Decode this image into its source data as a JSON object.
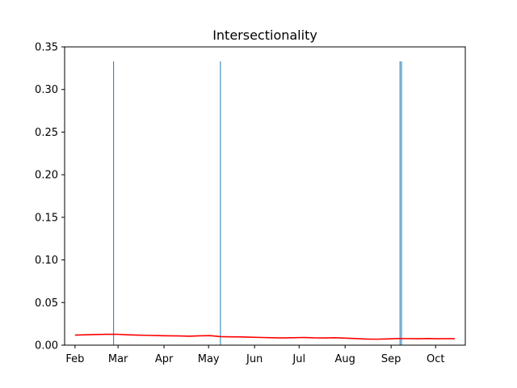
{
  "chart_data": {
    "type": "bar",
    "title": "Intersectionality",
    "xlabel": "",
    "ylabel": "",
    "ylim": [
      0,
      0.35
    ],
    "xlim": [
      "2020-01-25",
      "2020-10-21"
    ],
    "grid": false,
    "legend": null,
    "x_ticks": [
      {
        "date": "2020-02-01",
        "label": "Feb"
      },
      {
        "date": "2020-03-01",
        "label": "Mar"
      },
      {
        "date": "2020-04-01",
        "label": "Apr"
      },
      {
        "date": "2020-05-01",
        "label": "May"
      },
      {
        "date": "2020-06-01",
        "label": "Jun"
      },
      {
        "date": "2020-07-01",
        "label": "Jul"
      },
      {
        "date": "2020-08-01",
        "label": "Aug"
      },
      {
        "date": "2020-09-01",
        "label": "Sep"
      },
      {
        "date": "2020-10-01",
        "label": "Oct"
      }
    ],
    "y_ticks": [
      {
        "value": 0.0,
        "label": "0.00"
      },
      {
        "value": 0.05,
        "label": "0.05"
      },
      {
        "value": 0.1,
        "label": "0.10"
      },
      {
        "value": 0.15,
        "label": "0.15"
      },
      {
        "value": 0.2,
        "label": "0.20"
      },
      {
        "value": 0.25,
        "label": "0.25"
      },
      {
        "value": 0.3,
        "label": "0.30"
      },
      {
        "value": 0.35,
        "label": "0.35"
      }
    ],
    "series": [
      {
        "type": "bar",
        "color": "#1f77b4",
        "points": [
          {
            "x": "2020-02-27",
            "y": 0.333
          },
          {
            "x": "2020-05-09",
            "y": 0.333
          },
          {
            "x": "2020-09-07",
            "y": 0.333
          },
          {
            "x": "2020-09-08",
            "y": 0.333
          }
        ]
      },
      {
        "type": "line",
        "color": "#ff0000",
        "points": [
          {
            "x": "2020-02-01",
            "y": 0.0118
          },
          {
            "x": "2020-02-08",
            "y": 0.0122
          },
          {
            "x": "2020-02-15",
            "y": 0.0125
          },
          {
            "x": "2020-02-22",
            "y": 0.0127
          },
          {
            "x": "2020-02-29",
            "y": 0.0128
          },
          {
            "x": "2020-03-07",
            "y": 0.0122
          },
          {
            "x": "2020-03-14",
            "y": 0.0118
          },
          {
            "x": "2020-03-21",
            "y": 0.0115
          },
          {
            "x": "2020-03-28",
            "y": 0.0112
          },
          {
            "x": "2020-04-04",
            "y": 0.011
          },
          {
            "x": "2020-04-11",
            "y": 0.0108
          },
          {
            "x": "2020-04-18",
            "y": 0.0105
          },
          {
            "x": "2020-04-25",
            "y": 0.011
          },
          {
            "x": "2020-05-02",
            "y": 0.0112
          },
          {
            "x": "2020-05-09",
            "y": 0.01
          },
          {
            "x": "2020-05-16",
            "y": 0.0098
          },
          {
            "x": "2020-05-23",
            "y": 0.0097
          },
          {
            "x": "2020-05-30",
            "y": 0.0093
          },
          {
            "x": "2020-06-06",
            "y": 0.009
          },
          {
            "x": "2020-06-13",
            "y": 0.0087
          },
          {
            "x": "2020-06-20",
            "y": 0.0085
          },
          {
            "x": "2020-06-27",
            "y": 0.0087
          },
          {
            "x": "2020-07-04",
            "y": 0.009
          },
          {
            "x": "2020-07-11",
            "y": 0.0086
          },
          {
            "x": "2020-07-18",
            "y": 0.0085
          },
          {
            "x": "2020-07-25",
            "y": 0.0087
          },
          {
            "x": "2020-08-01",
            "y": 0.0082
          },
          {
            "x": "2020-08-08",
            "y": 0.0078
          },
          {
            "x": "2020-08-15",
            "y": 0.0072
          },
          {
            "x": "2020-08-22",
            "y": 0.007
          },
          {
            "x": "2020-08-29",
            "y": 0.0073
          },
          {
            "x": "2020-09-05",
            "y": 0.0078
          },
          {
            "x": "2020-09-12",
            "y": 0.0077
          },
          {
            "x": "2020-09-19",
            "y": 0.0075
          },
          {
            "x": "2020-09-26",
            "y": 0.0078
          },
          {
            "x": "2020-10-03",
            "y": 0.0075
          },
          {
            "x": "2020-10-10",
            "y": 0.0077
          },
          {
            "x": "2020-10-14",
            "y": 0.0075
          }
        ]
      }
    ]
  }
}
